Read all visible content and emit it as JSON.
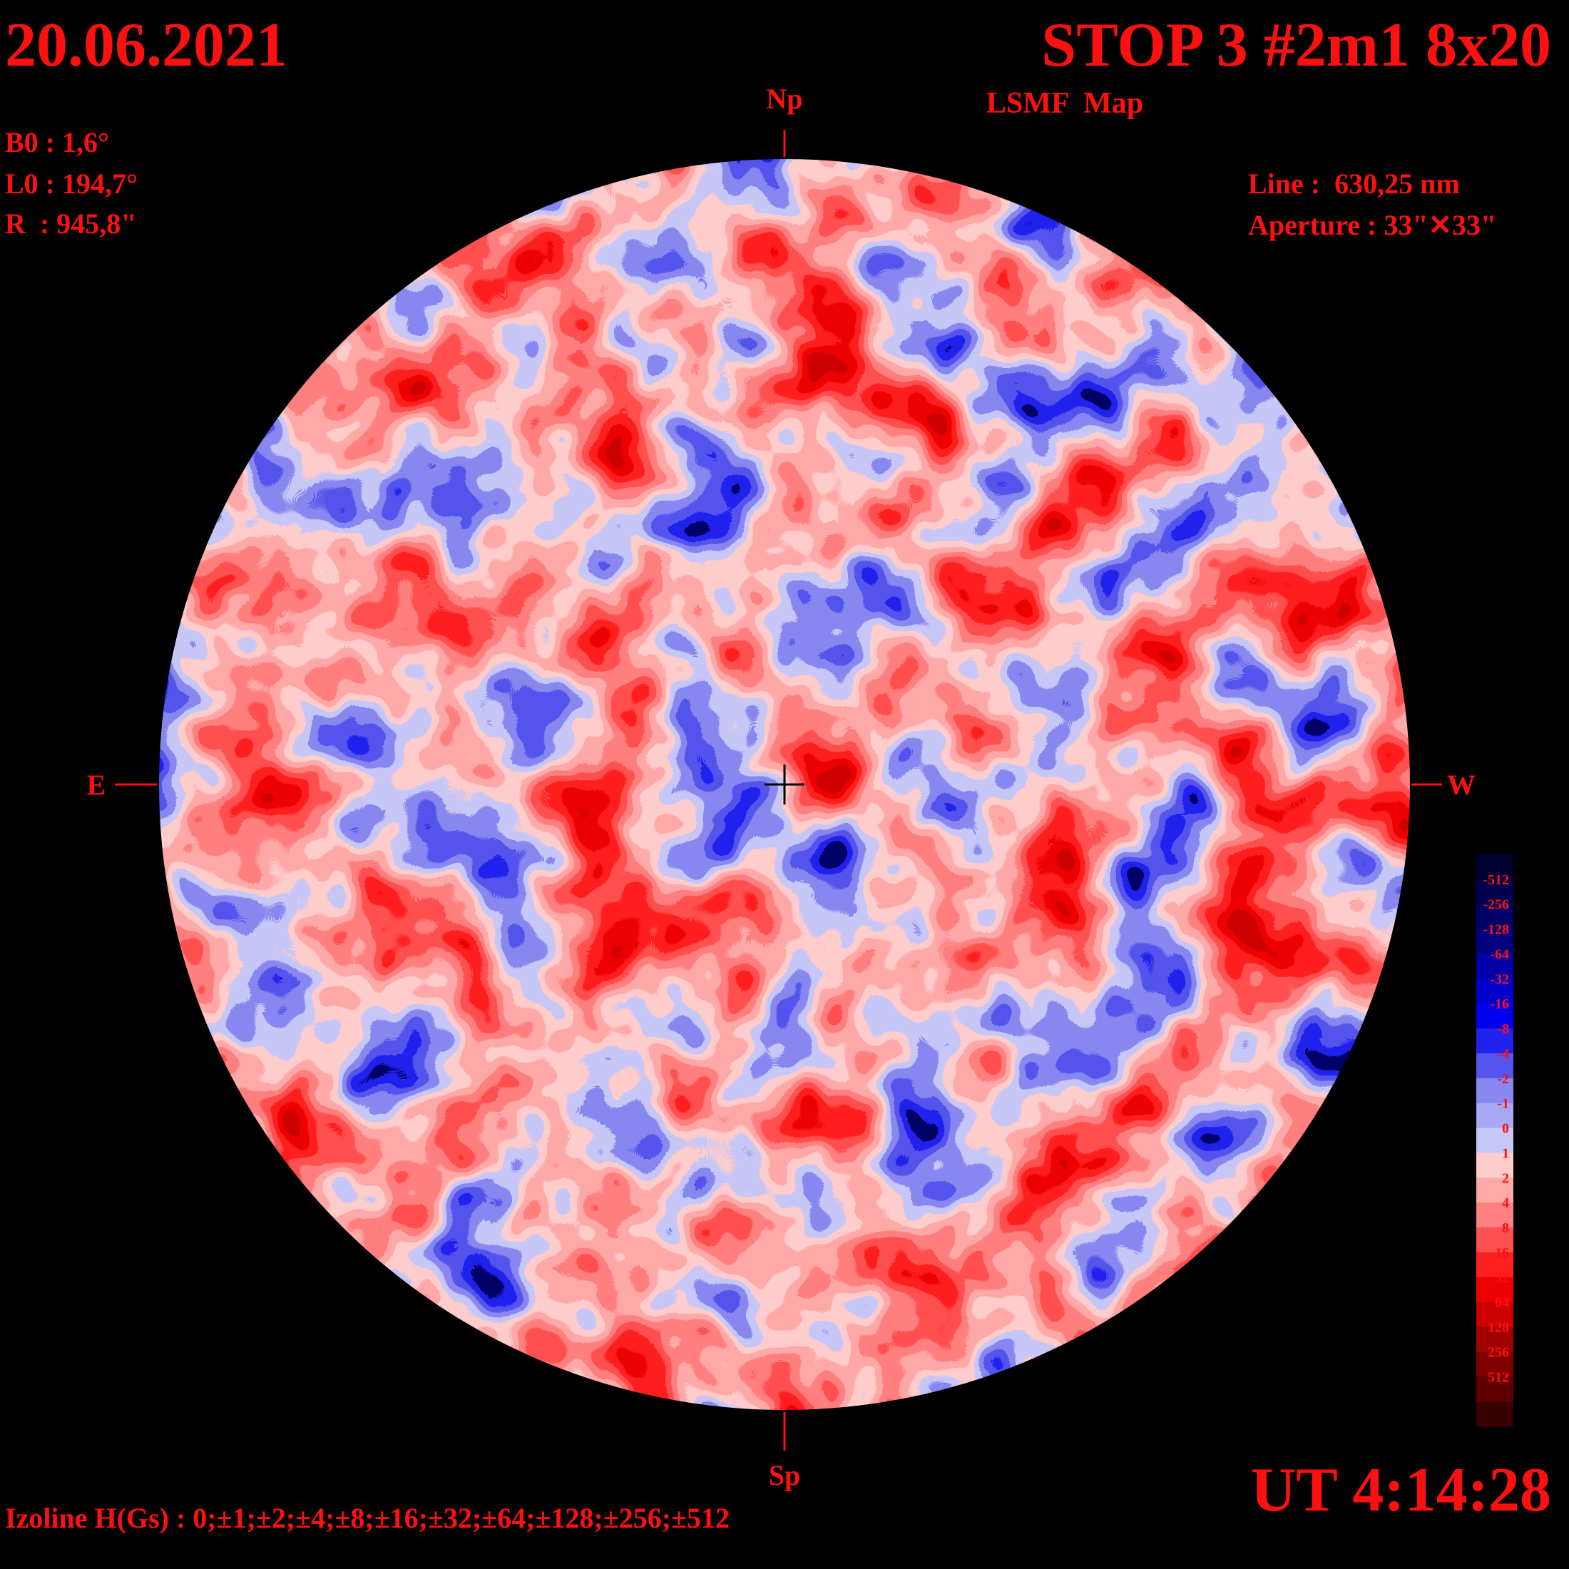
{
  "header": {
    "date": "20.06.2021",
    "title": "STOP 3 #2m1 8x20",
    "subtitle": "LSMF  Map",
    "time": "UT 4:14:28"
  },
  "parameters": {
    "b0": "B0 : 1,6°",
    "l0": "L0 : 194,7°",
    "radius": "R  : 945,8\"",
    "line": "Line :  630,25 nm",
    "aperture": "Aperture : 33\"✕33\""
  },
  "compass": {
    "north": "Np",
    "south": "Sp",
    "east": "E",
    "west": "W"
  },
  "footer": {
    "isolines": "Izoline H(Gs) : 0;±1;±2;±4;±8;±16;±32;±64;±128;±256;±512"
  },
  "colorbar": {
    "colors": [
      "#000033",
      "#00004d",
      "#000066",
      "#000080",
      "#0000a6",
      "#0000cc",
      "#0000f0",
      "#2222ee",
      "#5555ee",
      "#8888f0",
      "#a8a8f4",
      "#c8c8f8",
      "#ffcccc",
      "#ffa8a8",
      "#ff8080",
      "#ff5050",
      "#ff2020",
      "#ee0000",
      "#cc0000",
      "#a00000",
      "#800000",
      "#600000",
      "#3a0000"
    ],
    "labels": [
      -512,
      -256,
      -128,
      -64,
      -32,
      -16,
      -8,
      -4,
      -2,
      -1,
      0,
      1,
      2,
      4,
      8,
      16,
      32,
      64,
      128,
      256,
      512
    ]
  }
}
